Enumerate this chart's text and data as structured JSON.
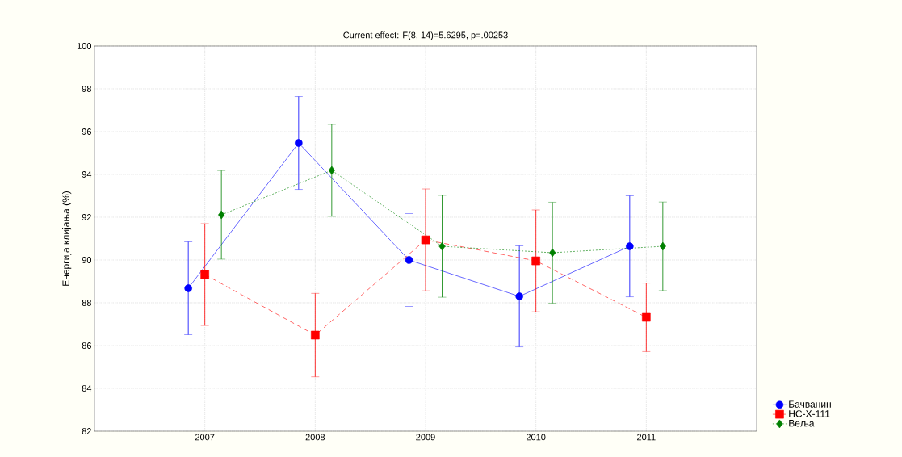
{
  "chart_data": {
    "type": "line",
    "title": "Current effect: F(8, 14)=5.6295, p=.00253",
    "ylabel": "Енергија клијања (%)",
    "categories": [
      "2007",
      "2008",
      "2009",
      "2010",
      "2011"
    ],
    "series": [
      {
        "name": "Бачванин",
        "color": "#0000ff",
        "marker": "circle",
        "line_style": "solid",
        "values": [
          88.68,
          95.47,
          90.0,
          88.3,
          90.64
        ],
        "errors": [
          2.17,
          2.17,
          2.17,
          2.36,
          2.36
        ]
      },
      {
        "name": "НС-Х-111",
        "color": "#ff0000",
        "marker": "square",
        "line_style": "dashed",
        "values": [
          89.32,
          86.49,
          90.94,
          89.96,
          87.32
        ],
        "errors": [
          2.38,
          1.95,
          2.38,
          2.38,
          1.6
        ]
      },
      {
        "name": "Веља",
        "color": "#008000",
        "marker": "diamond",
        "line_style": "dotted",
        "values": [
          92.11,
          94.19,
          90.64,
          90.34,
          90.64
        ],
        "errors": [
          2.07,
          2.15,
          2.38,
          2.36,
          2.07
        ]
      }
    ],
    "ylim": [
      82,
      100
    ],
    "yticks": [
      82,
      84,
      86,
      88,
      90,
      92,
      94,
      96,
      98,
      100
    ],
    "grid": true,
    "legend": "bottom right"
  }
}
